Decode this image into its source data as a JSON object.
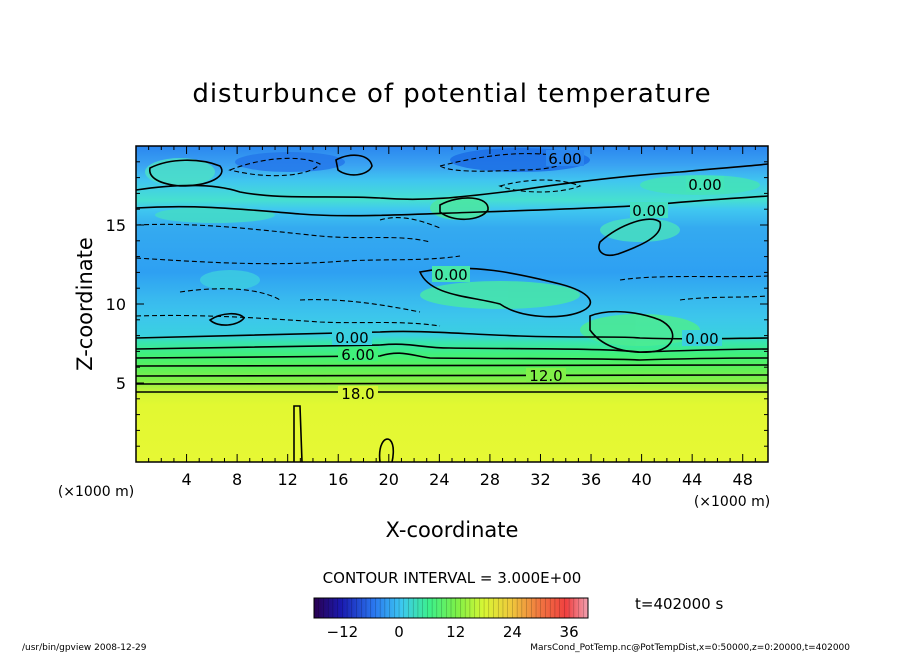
{
  "chart_data": {
    "type": "heatmap",
    "title": "disturbunce of potential temperature",
    "xlabel": "X-coordinate",
    "ylabel": "Z-coordinate",
    "x_unit_left": "(×1000 m)",
    "x_unit_right": "(×1000 m)",
    "xlim": [
      0,
      50
    ],
    "ylim": [
      0,
      20
    ],
    "xticks": [
      4,
      8,
      12,
      16,
      20,
      24,
      28,
      32,
      36,
      40,
      44,
      48
    ],
    "xtick_labels": [
      "4",
      "8",
      "12",
      "16",
      "20",
      "24",
      "28",
      "32",
      "36",
      "40",
      "44",
      "48"
    ],
    "yticks": [
      5,
      10,
      15
    ],
    "ytick_labels": [
      "5",
      "10",
      "15"
    ],
    "contour_interval_text": "CONTOUR INTERVAL = 3.000E+00",
    "time_text": "t=402000 s",
    "colorbar": {
      "min": -18,
      "max": 40,
      "ticks": [
        -12,
        0,
        12,
        24,
        36
      ],
      "tick_labels": [
        "−12",
        "0",
        "12",
        "24",
        "36"
      ]
    },
    "contour_labels": [
      {
        "text": "6.00",
        "x": 32.6,
        "z": 19.0,
        "dashed": true
      },
      {
        "text": "0.00",
        "x": 45.1,
        "z": 17.6
      },
      {
        "text": "0.00",
        "x": 40.3,
        "z": 16.2
      },
      {
        "text": "0.00",
        "x": 24.8,
        "z": 12.3
      },
      {
        "text": "0.00",
        "x": 17.1,
        "z": 8.1
      },
      {
        "text": "0.00",
        "x": 44.2,
        "z": 8.0
      },
      {
        "text": "6.00",
        "x": 17.6,
        "z": 6.9
      },
      {
        "text": "12.0",
        "x": 30.6,
        "z": 5.5
      },
      {
        "text": "18.0",
        "x": 17.6,
        "z": 4.3
      }
    ]
  },
  "footer": {
    "left": "/usr/bin/gpview   2008-12-29",
    "right": "MarsCond_PotTemp.nc@PotTempDist,x=0:50000,z=0:20000,t=402000"
  },
  "colors": {
    "blue": "#1e90ff",
    "cyan": "#3cc8f0",
    "green": "#3cf08c",
    "yellow": "#e0f832"
  }
}
